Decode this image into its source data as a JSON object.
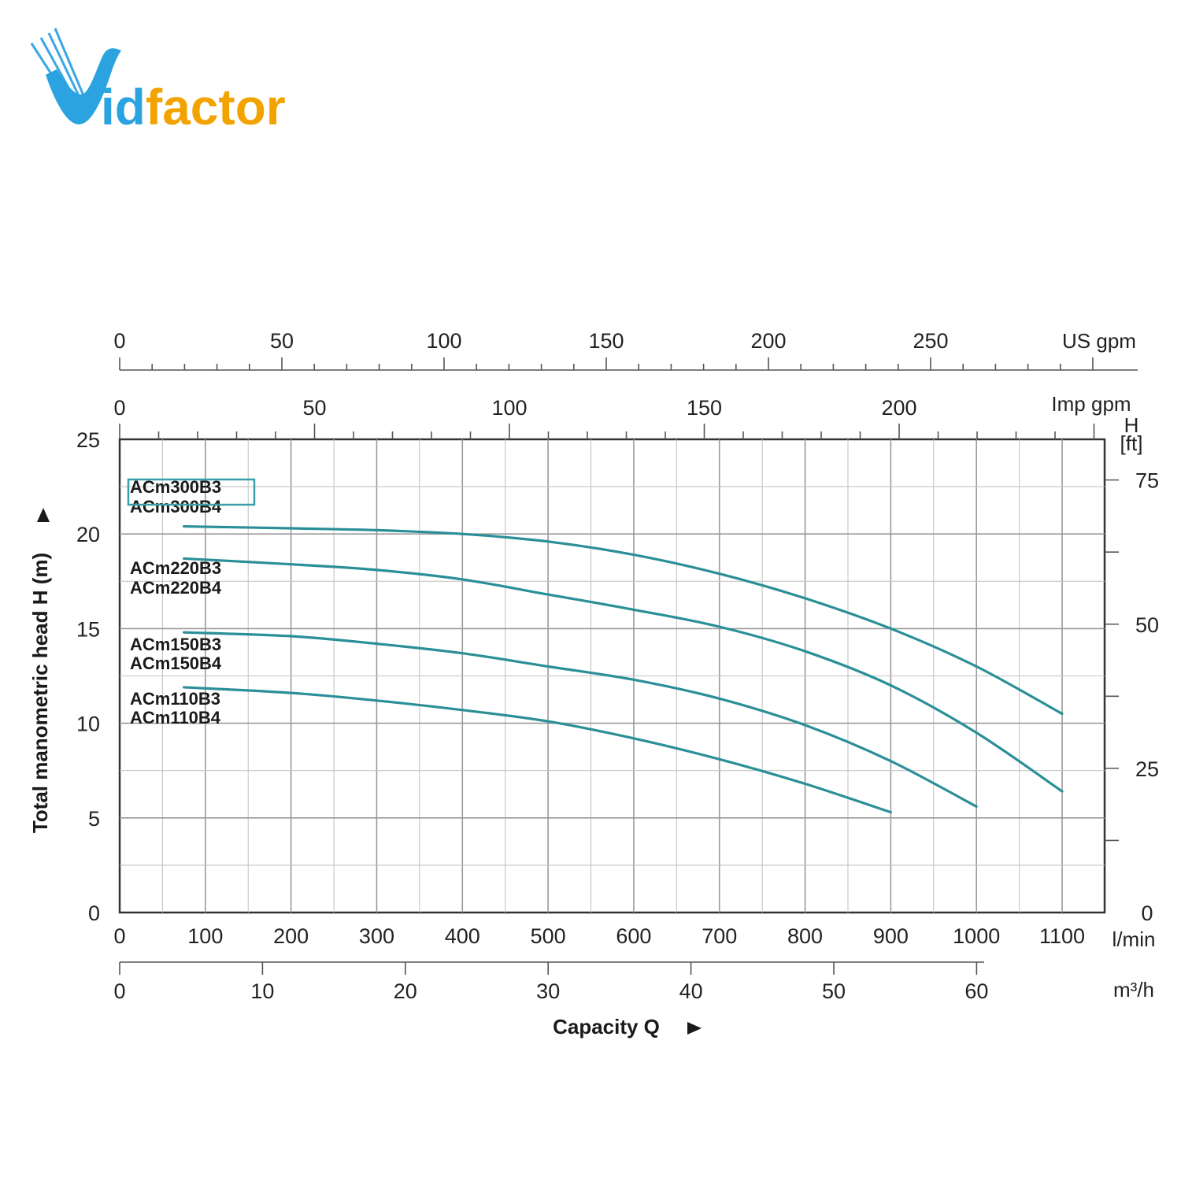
{
  "brand": {
    "name": "Vidfactor",
    "colors": {
      "blue": "#2aa3e0",
      "orange": "#f2a300"
    }
  },
  "chart_data": {
    "type": "line",
    "title": "",
    "xlabel": "Capacity Q",
    "ylabel": "Total manometric head H (m)",
    "x_unit": "l/min",
    "y_unit": "m",
    "xlim": [
      0,
      1150
    ],
    "ylim": [
      0,
      25
    ],
    "grid": true,
    "line_color": "#2a8f97",
    "primary_x_ticks": [
      0,
      100,
      200,
      300,
      400,
      500,
      600,
      700,
      800,
      900,
      1000,
      1100
    ],
    "primary_y_ticks": [
      0,
      5,
      10,
      15,
      20,
      25
    ],
    "secondary_axes": {
      "us_gpm": {
        "label": "US gpm",
        "ticks": [
          0,
          50,
          100,
          150,
          200,
          250
        ]
      },
      "imp_gpm": {
        "label": "Imp gpm",
        "ticks": [
          0,
          50,
          100,
          150,
          200
        ]
      },
      "m3h": {
        "label": "m³/h",
        "ticks": [
          0,
          10,
          20,
          30,
          40,
          50,
          60
        ]
      },
      "head_ft": {
        "label_top": "H",
        "label_bottom": "[ft]",
        "ticks": [
          0,
          25,
          50,
          75
        ]
      }
    },
    "series": [
      {
        "labels": [
          "ACm300B3",
          "ACm300B4"
        ],
        "highlighted": "ACm300B3",
        "x": [
          75,
          200,
          300,
          400,
          500,
          600,
          700,
          800,
          900,
          1000,
          1100
        ],
        "y": [
          20.4,
          20.3,
          20.2,
          20.0,
          19.6,
          18.9,
          17.9,
          16.6,
          15.0,
          13.0,
          10.5
        ]
      },
      {
        "labels": [
          "ACm220B3",
          "ACm220B4"
        ],
        "x": [
          75,
          200,
          300,
          400,
          500,
          600,
          700,
          800,
          900,
          1000,
          1100
        ],
        "y": [
          18.7,
          18.4,
          18.1,
          17.6,
          16.8,
          16.0,
          15.1,
          13.8,
          12.0,
          9.5,
          6.4
        ]
      },
      {
        "labels": [
          "ACm150B3",
          "ACm150B4"
        ],
        "x": [
          75,
          200,
          300,
          400,
          500,
          600,
          700,
          800,
          900,
          1000
        ],
        "y": [
          14.8,
          14.6,
          14.2,
          13.7,
          13.0,
          12.3,
          11.3,
          9.9,
          8.0,
          5.6
        ]
      },
      {
        "labels": [
          "ACm110B3",
          "ACm110B4"
        ],
        "x": [
          75,
          200,
          300,
          400,
          500,
          600,
          700,
          800,
          900
        ],
        "y": [
          11.9,
          11.6,
          11.2,
          10.7,
          10.1,
          9.2,
          8.1,
          6.8,
          5.3
        ]
      }
    ]
  }
}
